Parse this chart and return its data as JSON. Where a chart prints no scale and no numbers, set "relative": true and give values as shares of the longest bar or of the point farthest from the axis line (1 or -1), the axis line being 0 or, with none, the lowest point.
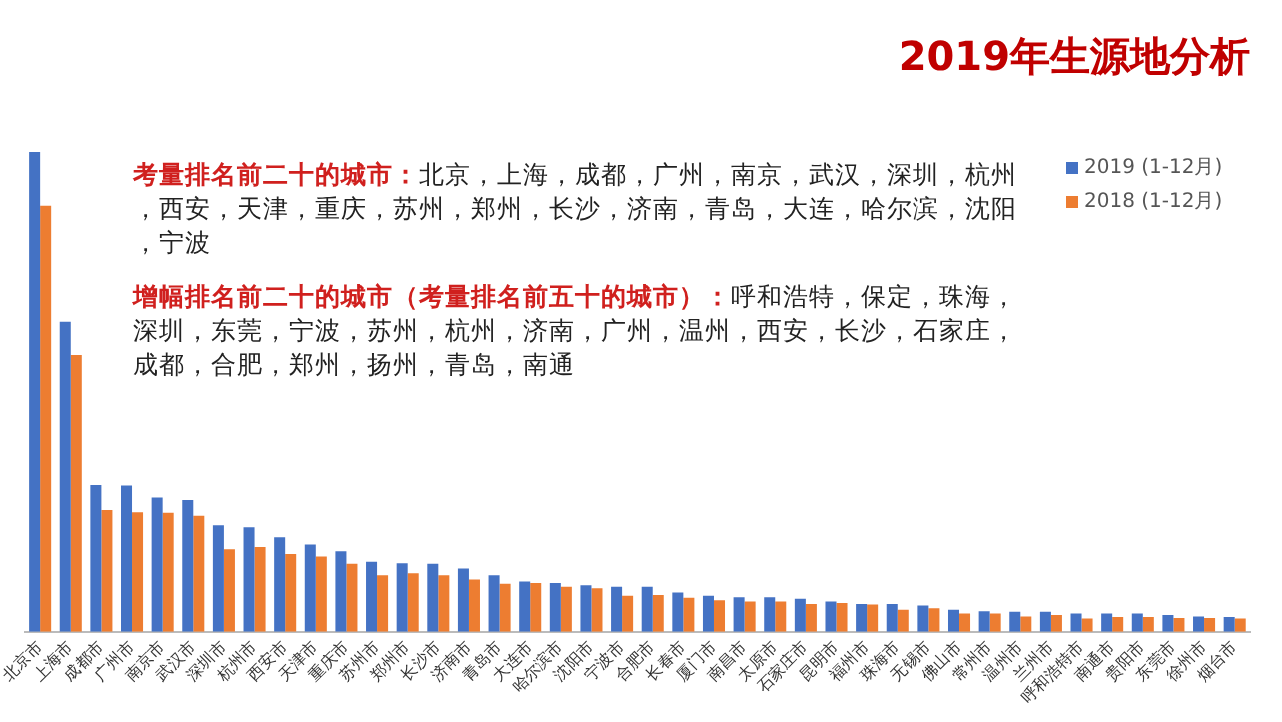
{
  "chart_data": {
    "type": "bar",
    "title": "2019年生源地分析",
    "relative": true,
    "legend": "top right",
    "grid": false,
    "categories": [
      "北京市",
      "上海市",
      "成都市",
      "广州市",
      "南京市",
      "武汉市",
      "深圳市",
      "杭州市",
      "西安市",
      "天津市",
      "重庆市",
      "苏州市",
      "郑州市",
      "长沙市",
      "济南市",
      "青岛市",
      "大连市",
      "哈尔滨市",
      "沈阳市",
      "宁波市",
      "合肥市",
      "长春市",
      "厦门市",
      "南昌市",
      "太原市",
      "石家庄市",
      "昆明市",
      "福州市",
      "珠海市",
      "无锡市",
      "佛山市",
      "常州市",
      "温州市",
      "兰州市",
      "呼和浩特市",
      "南通市",
      "贵阳市",
      "东莞市",
      "徐州市",
      "烟台市"
    ],
    "series": [
      {
        "name": "2019 (1-12月)",
        "color": "#4472c4",
        "values": [
          1,
          0.646,
          0.306,
          0.305,
          0.28,
          0.275,
          0.222,
          0.218,
          0.197,
          0.182,
          0.168,
          0.146,
          0.143,
          0.142,
          0.132,
          0.118,
          0.105,
          0.102,
          0.097,
          0.094,
          0.094,
          0.082,
          0.075,
          0.072,
          0.072,
          0.069,
          0.063,
          0.058,
          0.058,
          0.055,
          0.046,
          0.043,
          0.042,
          0.042,
          0.038,
          0.038,
          0.038,
          0.035,
          0.032,
          0.031
        ]
      },
      {
        "name": "2018 (1-12月)",
        "color": "#ed7d31",
        "values": [
          0.888,
          0.577,
          0.254,
          0.249,
          0.248,
          0.242,
          0.172,
          0.177,
          0.162,
          0.157,
          0.142,
          0.118,
          0.122,
          0.118,
          0.109,
          0.1,
          0.102,
          0.094,
          0.091,
          0.075,
          0.077,
          0.071,
          0.066,
          0.063,
          0.063,
          0.058,
          0.06,
          0.057,
          0.046,
          0.049,
          0.038,
          0.038,
          0.032,
          0.035,
          0.028,
          0.031,
          0.031,
          0.029,
          0.029,
          0.028
        ]
      }
    ],
    "annotations": [
      "考量排名前二十的城市：北京，上海，成都，广州，南京，武汉，深圳，杭州，西安，天津，重庆，苏州，郑州，长沙，济南，青岛，大连，哈尔滨，沈阳，宁波",
      "增幅排名前二十的城市（考量排名前五十的城市）：呼和浩特，保定，珠海，深圳，东莞，宁波，苏州，杭州，济南，广州，温州，西安，长沙，石家庄，成都，合肥，郑州，扬州，青岛，南通"
    ]
  }
}
